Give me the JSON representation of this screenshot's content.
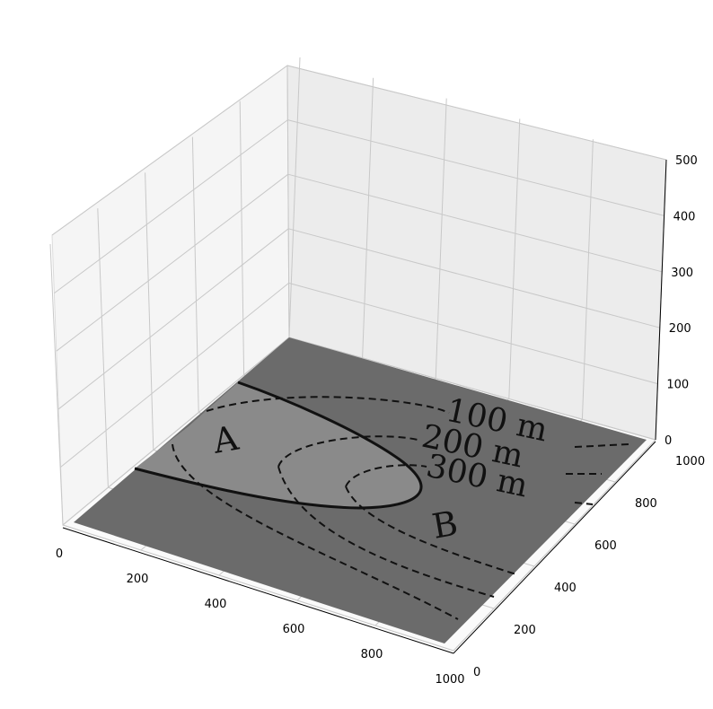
{
  "chart_data": {
    "type": "surface3d",
    "title": "",
    "xlabel": "",
    "ylabel": "",
    "zlabel": "",
    "xlim": [
      0,
      1000
    ],
    "ylim": [
      0,
      1000
    ],
    "zlim": [
      0,
      500
    ],
    "x_ticks": [
      "0",
      "200",
      "400",
      "600",
      "800",
      "1000"
    ],
    "y_ticks": [
      "0",
      "200",
      "400",
      "600",
      "800",
      "1000"
    ],
    "z_ticks": [
      "0",
      "100",
      "200",
      "300",
      "400",
      "500"
    ],
    "grid": true,
    "surface": {
      "z": 0,
      "colors": {
        "outer": "#6b6b6b",
        "inner": "#8a8a8a",
        "lines": "#111111",
        "pane_back": "#ebebeb",
        "pane_left": "#f5f5f5",
        "pane_floor": "#fafafa",
        "grid": "#c8c8c8"
      },
      "annotations": [
        "A",
        "B",
        "100 m",
        "200 m",
        "300 m"
      ]
    }
  }
}
